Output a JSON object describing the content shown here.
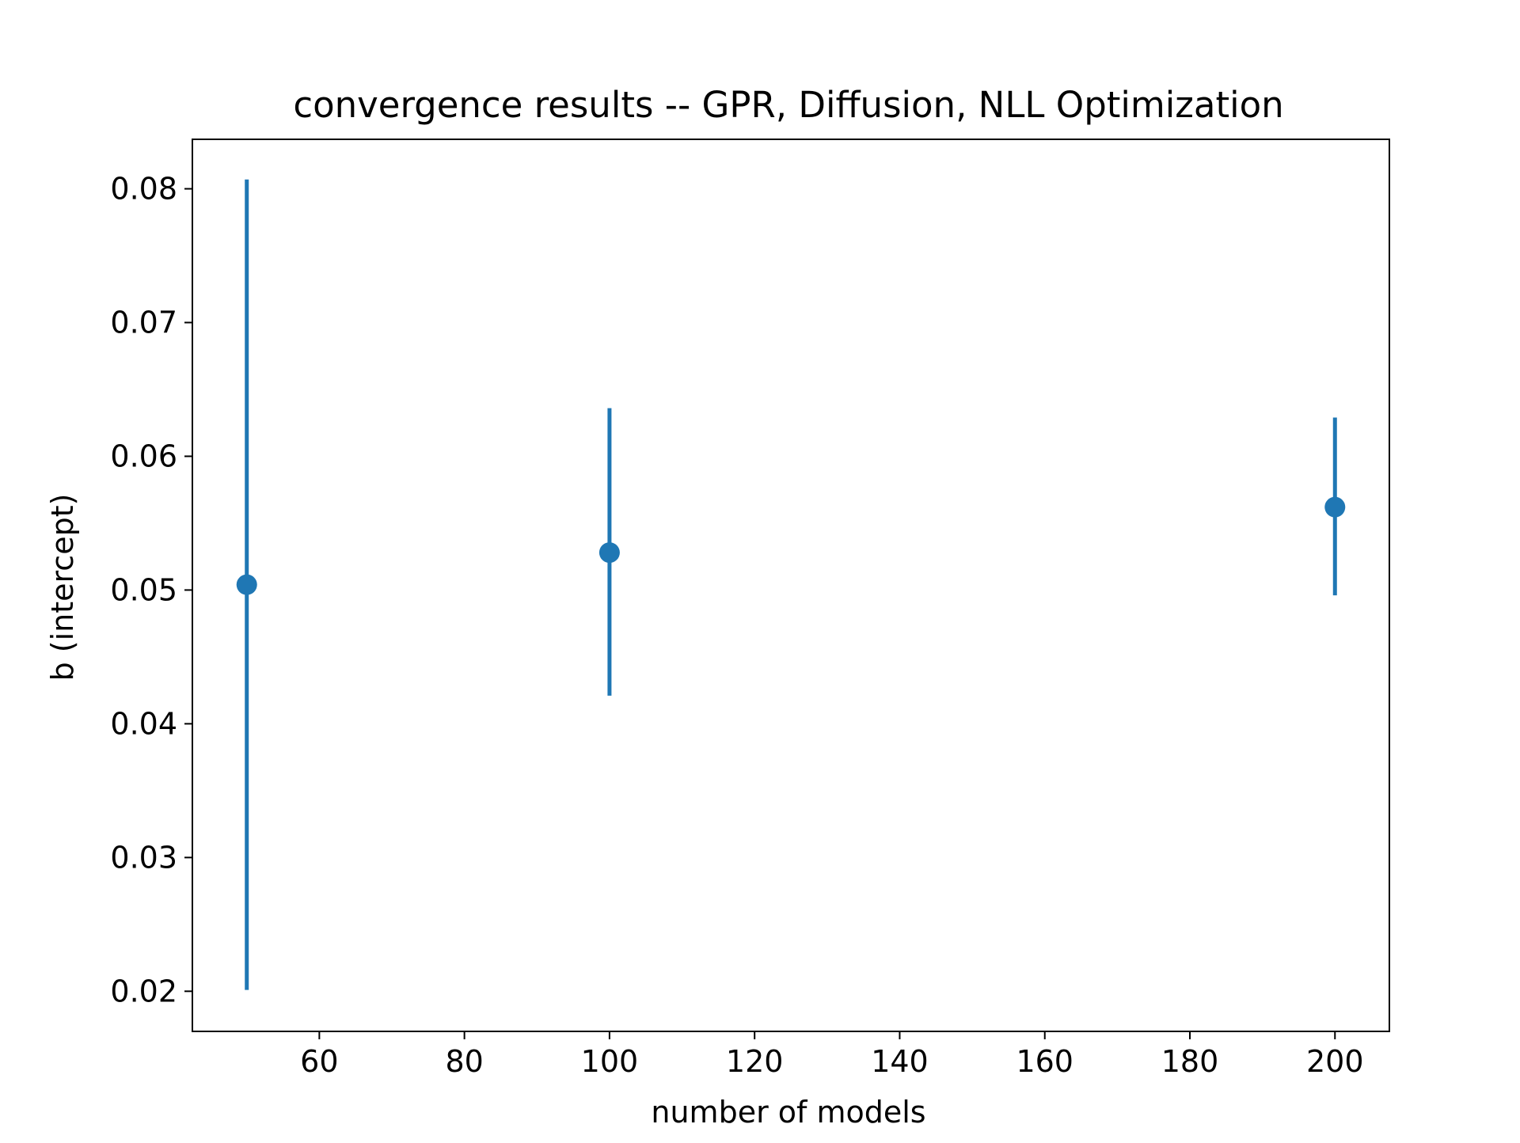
{
  "chart_data": {
    "type": "scatter",
    "title": "convergence results -- GPR, Diffusion, NLL Optimization",
    "xlabel": "number of models",
    "ylabel": "b (intercept)",
    "xlim": [
      42.5,
      207.5
    ],
    "ylim": [
      0.017,
      0.0837
    ],
    "x_ticks": [
      60,
      80,
      100,
      120,
      140,
      160,
      180,
      200
    ],
    "x_tick_labels": [
      "60",
      "80",
      "100",
      "120",
      "140",
      "160",
      "180",
      "200"
    ],
    "y_ticks": [
      0.02,
      0.03,
      0.04,
      0.05,
      0.06,
      0.07,
      0.08
    ],
    "y_tick_labels": [
      "0.02",
      "0.03",
      "0.04",
      "0.05",
      "0.06",
      "0.07",
      "0.08"
    ],
    "grid": false,
    "series": [
      {
        "color": "#1f77b4",
        "points": [
          {
            "x": 50,
            "y": 0.0504,
            "yerr_low": 0.0201,
            "yerr_high": 0.0807
          },
          {
            "x": 100,
            "y": 0.0528,
            "yerr_low": 0.0421,
            "yerr_high": 0.0636
          },
          {
            "x": 200,
            "y": 0.0562,
            "yerr_low": 0.0496,
            "yerr_high": 0.0629
          }
        ]
      }
    ]
  }
}
